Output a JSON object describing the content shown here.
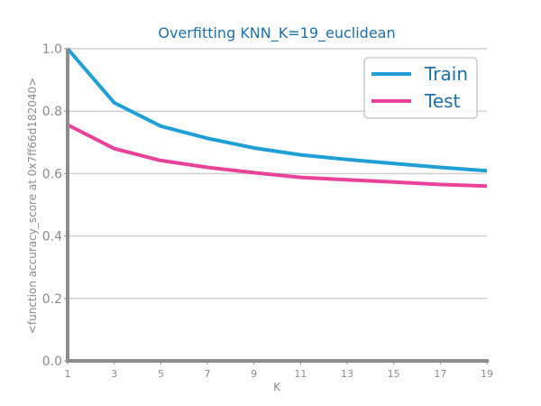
{
  "chart_data": {
    "type": "line",
    "title": "Overfitting KNN_K=19_euclidean",
    "xlabel": "K",
    "ylabel": "<function accuracy_score at 0x7ff66d182040>",
    "x": [
      1,
      3,
      5,
      7,
      9,
      11,
      13,
      15,
      17,
      19
    ],
    "x_ticks": [
      "1",
      "3",
      "5",
      "7",
      "9",
      "11",
      "13",
      "15",
      "17",
      "19"
    ],
    "y_ticks": [
      "0.0",
      "0.2",
      "0.4",
      "0.6",
      "0.8",
      "1.0"
    ],
    "ylim": [
      0,
      1.0
    ],
    "grid": "horizontal",
    "legend_position": "top-right",
    "series": [
      {
        "name": "Train",
        "color": "#1f9fd6",
        "values": [
          1.0,
          0.827,
          0.752,
          0.713,
          0.682,
          0.66,
          0.645,
          0.632,
          0.62,
          0.609
        ]
      },
      {
        "name": "Test",
        "color": "#e8429a",
        "values": [
          0.756,
          0.68,
          0.642,
          0.62,
          0.603,
          0.588,
          0.58,
          0.573,
          0.565,
          0.56
        ]
      }
    ],
    "colors": {
      "title": "#1d6fa8",
      "axis": "#8c8c8c",
      "grid": "#d0d0d0",
      "legend_border": "#cccccc"
    }
  }
}
